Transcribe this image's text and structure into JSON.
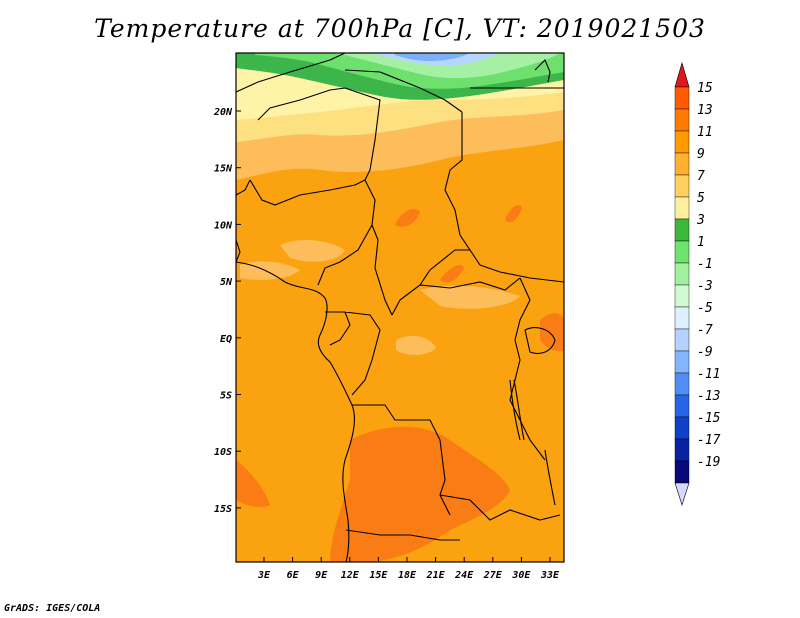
{
  "title": "Temperature at 700hPa [C], VT: 2019021503",
  "credit": "GrADS: IGES/COLA",
  "map": {
    "lon_labels": [
      "3E",
      "6E",
      "9E",
      "12E",
      "15E",
      "18E",
      "21E",
      "24E",
      "27E",
      "30E",
      "33E"
    ],
    "lat_labels": [
      "20N",
      "15N",
      "10N",
      "5N",
      "EQ",
      "5S",
      "10S",
      "15S"
    ]
  },
  "colorbar": {
    "labels": [
      "15",
      "13",
      "11",
      "9",
      "7",
      "5",
      "3",
      "1",
      "-1",
      "-3",
      "-5",
      "-7",
      "-9",
      "-11",
      "-13",
      "-15",
      "-17",
      "-19"
    ],
    "colors": [
      "#f03020",
      "#ff5a00",
      "#ff7a00",
      "#ff9a00",
      "#ffb030",
      "#ffd060",
      "#fff0a0",
      "#3ab83a",
      "#6ee36e",
      "#a0f0a0",
      "#d2fad2",
      "#dcf0ff",
      "#b4d2ff",
      "#82b4ff",
      "#4f8ff5",
      "#2864e6",
      "#1040c8",
      "#0a22a0",
      "#08087a",
      "#e0e0ff"
    ],
    "top_color": "#e01818",
    "bottom_color": "#d8d8ff"
  },
  "map_colors": {
    "base": "#fba210",
    "warm": "#fa7c14",
    "cool": "#fcbd5a",
    "pale": "#fde080",
    "yellow": "#fff3a8",
    "green_dark": "#3cb64a",
    "green": "#6ee06e",
    "green_light": "#a5f0a5",
    "blue_light": "#b4d6ff",
    "blue": "#7ab0f8"
  }
}
